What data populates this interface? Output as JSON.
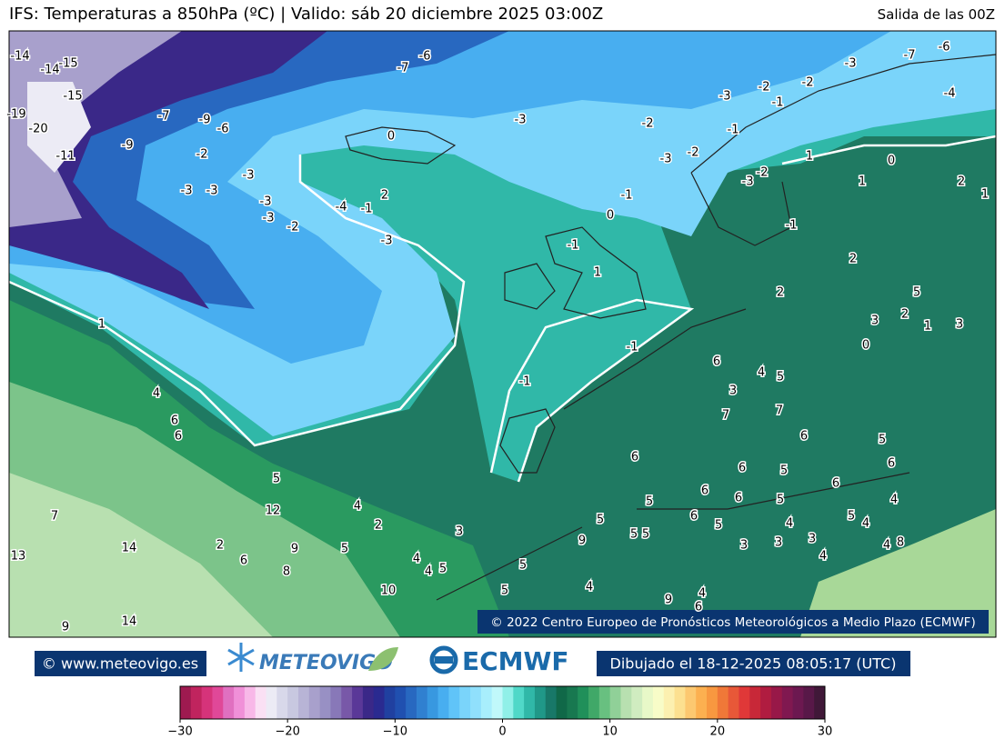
{
  "header": {
    "title": "IFS: Temperaturas a 850hPa  (ºC) | Valido: sáb 20 diciembre 2025 03:00Z",
    "run": "Salida de las 00Z"
  },
  "map": {
    "copyright": "© 2022 Centro Europeo de Pronósticos Meteorológicos a Medio Plazo (ECMWF)",
    "contour_labels": [
      -14,
      -14,
      -15,
      -15,
      -19,
      -20,
      -11,
      -7,
      -9,
      -6,
      -9,
      -2,
      -3,
      -3,
      -3,
      -3,
      -3,
      -2,
      -4,
      -1,
      2,
      -3,
      -7,
      -6,
      0,
      -3,
      -2,
      -3,
      -2,
      -2,
      -1,
      -1,
      -3,
      -2,
      -3,
      -7,
      -6,
      -4,
      -1,
      0,
      -1,
      1,
      -3,
      -2,
      -1,
      1,
      1,
      0,
      2,
      1,
      2,
      2,
      5,
      2,
      3,
      1,
      3,
      0,
      1,
      -1,
      -1,
      4,
      6,
      6,
      5,
      6,
      3,
      4,
      5,
      7,
      7,
      6,
      6,
      6,
      5,
      6,
      6,
      5,
      4,
      5,
      6,
      6,
      6,
      5,
      5,
      4,
      3,
      3,
      3,
      4,
      5,
      4,
      5,
      5,
      5,
      9,
      4,
      7,
      13,
      14,
      12,
      4,
      2,
      3,
      2,
      6,
      8,
      9,
      5,
      4,
      4,
      5,
      5,
      5,
      10,
      9,
      4,
      6,
      4,
      8,
      9,
      14,
      10
    ]
  },
  "footer": {
    "site": "© www.meteovigo.es",
    "brand": "METEOVIGO",
    "ecmwf": "ECMWF",
    "drawn": "Dibujado el 18-12-2025 08:05:17 (UTC)"
  },
  "colorbar": {
    "lim": [
      -30,
      30
    ],
    "ticks": [
      {
        "value": -30,
        "label": "−30"
      },
      {
        "value": -20,
        "label": "−20"
      },
      {
        "value": -10,
        "label": "−10"
      },
      0,
      10,
      20,
      30
    ],
    "colors": [
      "#9e1a50",
      "#c0245e",
      "#d6337a",
      "#e04898",
      "#e070c0",
      "#f090d8",
      "#f8b8e8",
      "#fae0f4",
      "#ecebf5",
      "#d8d8ea",
      "#c8c8e0",
      "#b8b4d6",
      "#a8a0cc",
      "#9890c4",
      "#8878b8",
      "#7858a8",
      "#5a3898",
      "#3a2888",
      "#2a2a90",
      "#2040a0",
      "#2050b0",
      "#2868c0",
      "#3080d0",
      "#3898e0",
      "#48aef0",
      "#60c4f8",
      "#7ad4fa",
      "#90e0fc",
      "#a8eefc",
      "#c0f8fa",
      "#90f0e8",
      "#50d8c8",
      "#30b8a8",
      "#209888",
      "#187868",
      "#106848",
      "#187850",
      "#20905a",
      "#40a868",
      "#68c080",
      "#90d098",
      "#b8e0b0",
      "#d0ecc0",
      "#e8f8c8",
      "#f8fcc8",
      "#fcf0b0",
      "#fce090",
      "#fcc870",
      "#fcb050",
      "#f89840",
      "#f07838",
      "#e85838",
      "#e03838",
      "#c82838",
      "#b01c40",
      "#981848",
      "#801850",
      "#6c1850",
      "#581848",
      "#401838"
    ]
  }
}
